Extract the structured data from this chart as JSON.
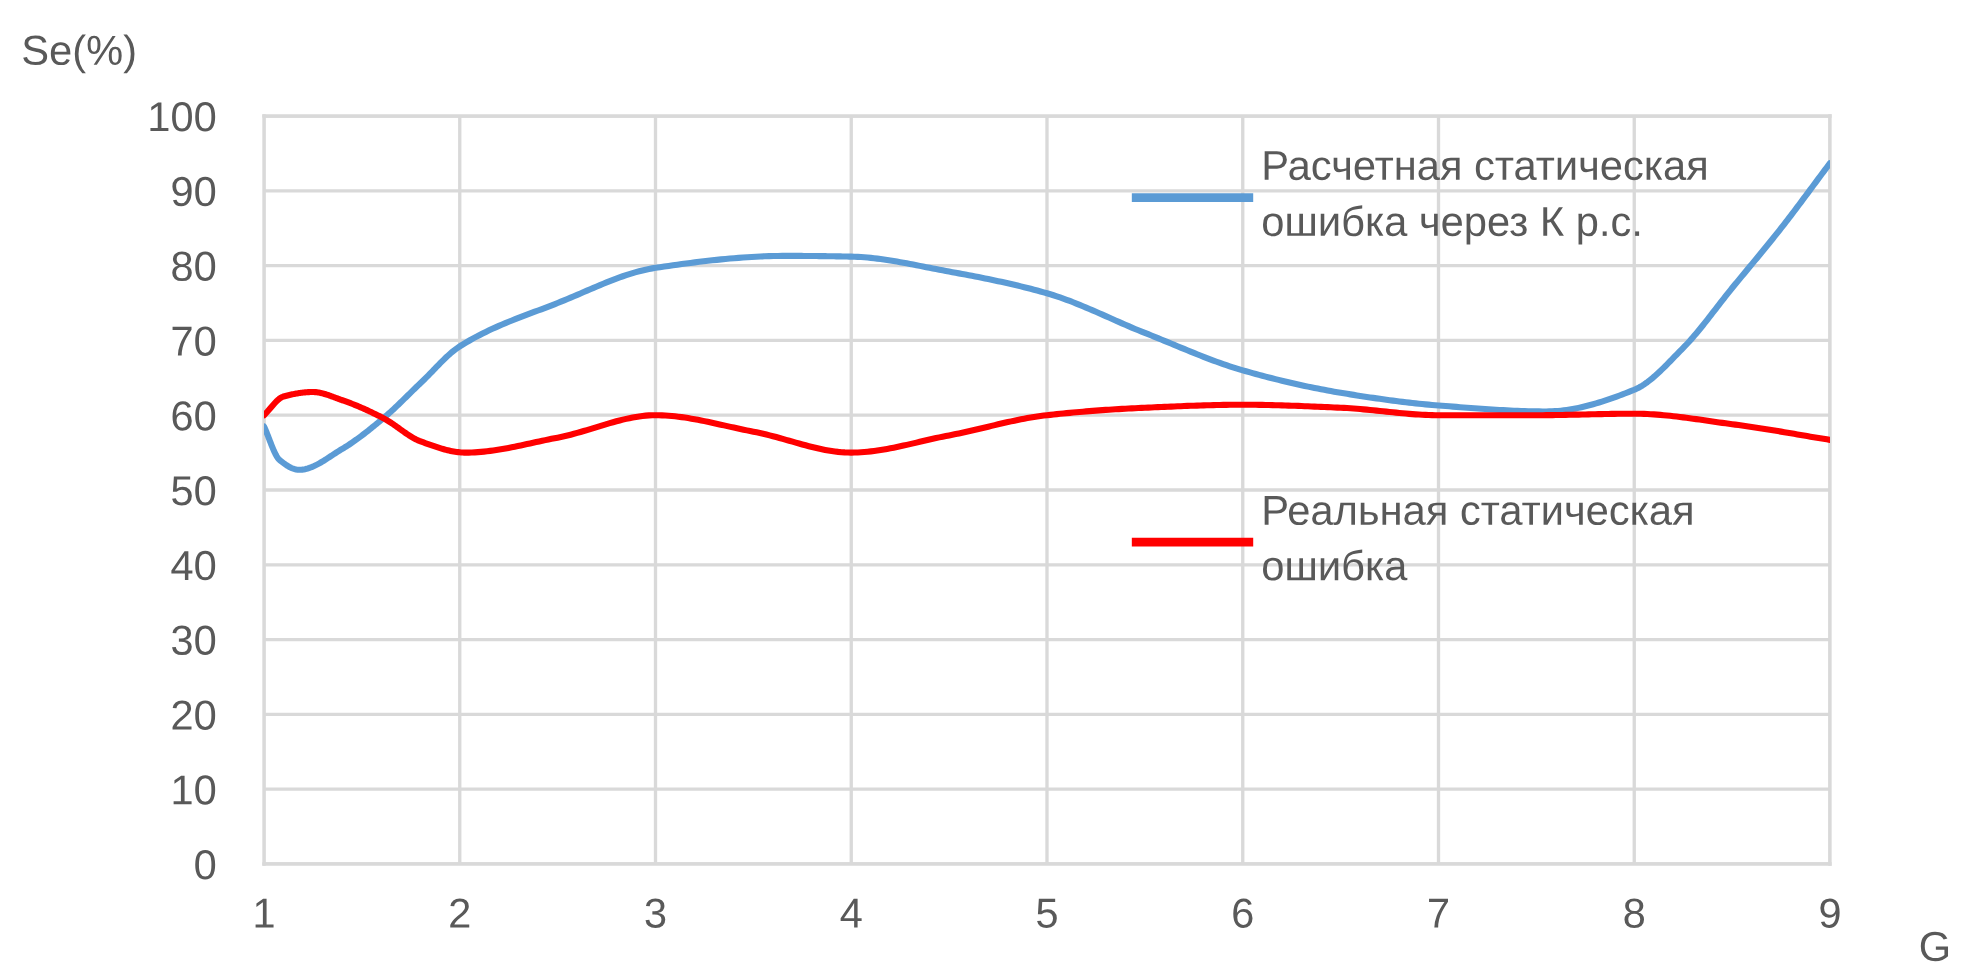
{
  "chart_data": {
    "type": "line",
    "xlabel": "G",
    "ylabel": "Se(%)",
    "xlim": [
      1,
      9
    ],
    "xticks": [
      1,
      2,
      3,
      4,
      5,
      6,
      7,
      8,
      9
    ],
    "ylim": [
      0,
      100
    ],
    "yticks": [
      0,
      10,
      20,
      30,
      40,
      50,
      60,
      70,
      80,
      90,
      100
    ],
    "grid": true,
    "legend": "right",
    "line_style": "solid",
    "series": [
      {
        "name": "Расчетная статическая ошибка через К р.с.",
        "color": "#5b9bd5",
        "x": [
          1,
          1.08,
          1.18,
          1.4,
          1.61,
          1.8,
          2,
          2.5,
          3,
          3.67,
          4,
          4.5,
          5,
          5.5,
          6,
          6.5,
          7,
          7.55,
          8,
          8.25,
          8.5,
          8.75,
          9
        ],
        "values": [
          58.5,
          54,
          52.7,
          55.5,
          59.6,
          64.3,
          69.2,
          75,
          79.7,
          81.3,
          81.2,
          79.2,
          76.3,
          71,
          66,
          63,
          61.3,
          60.5,
          63.4,
          69,
          77,
          85,
          93.7
        ]
      },
      {
        "name": "Реальная статическая ошибка",
        "color": "#ff0000",
        "x": [
          1,
          1.1,
          1.25,
          1.4,
          1.61,
          1.8,
          2.03,
          2.5,
          3,
          3.5,
          4,
          4.5,
          5,
          5.5,
          6,
          6.5,
          7,
          7.5,
          8,
          8.5,
          9
        ],
        "values": [
          60,
          62.5,
          63.1,
          62,
          59.6,
          56.5,
          55,
          57,
          60,
          57.8,
          55,
          57.3,
          60,
          61,
          61.4,
          61,
          60,
          60,
          60.2,
          58.8,
          56.7
        ]
      }
    ]
  }
}
